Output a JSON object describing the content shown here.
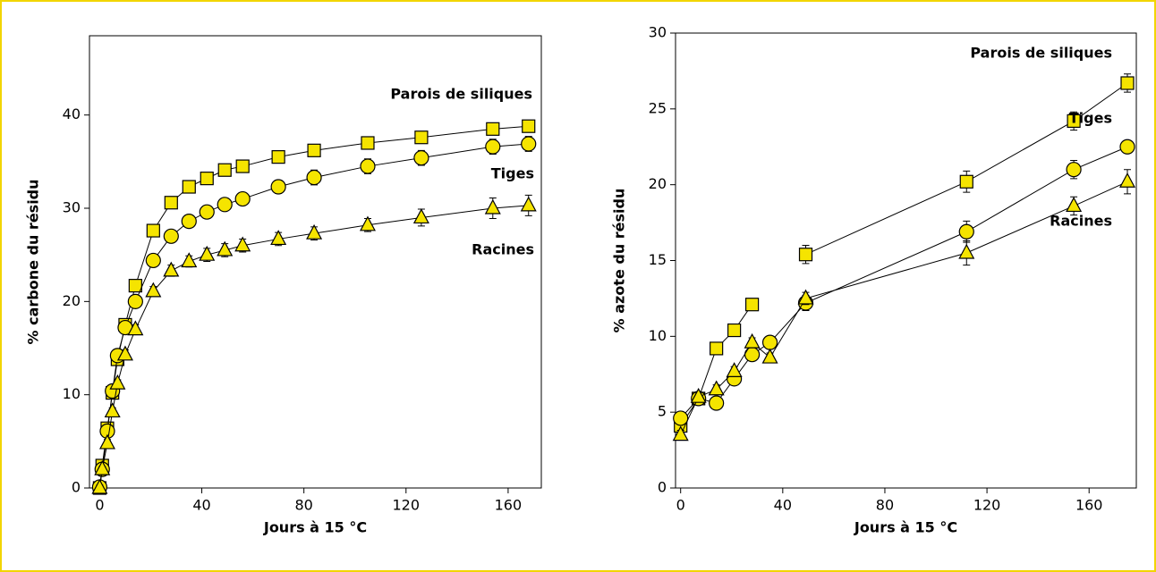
{
  "chart_data": [
    {
      "type": "line",
      "y_label": "% carbone du résidu",
      "x_label": "Jours à 15 °C",
      "x": [
        0,
        1,
        3,
        5,
        7,
        10,
        14,
        21,
        28,
        35,
        42,
        49,
        56,
        70,
        84,
        105,
        126,
        154,
        168
      ],
      "xlim": [
        -4,
        173
      ],
      "ylim": [
        0,
        48.5
      ],
      "xticks": [
        0,
        40,
        80,
        120,
        160
      ],
      "yticks": [
        0,
        10,
        20,
        30,
        40
      ],
      "series": [
        {
          "name": "Parois de siliques",
          "marker": "square",
          "color": "#f5e400",
          "values": [
            0,
            2.4,
            6.4,
            10.2,
            13.8,
            17.5,
            21.7,
            27.6,
            30.6,
            32.3,
            33.2,
            34.1,
            34.5,
            35.5,
            36.2,
            37.0,
            37.6,
            38.5,
            38.8
          ],
          "errors": [
            0.3,
            0.3,
            0.4,
            0.4,
            0.4,
            0.4,
            0.4,
            0.4,
            0.4,
            0.4,
            0.4,
            0.4,
            0.4,
            0.4,
            0.4,
            0.4,
            0.4,
            0.4,
            0.4
          ]
        },
        {
          "name": "Tiges",
          "marker": "circle",
          "color": "#f5e400",
          "values": [
            0.1,
            2.0,
            6.1,
            10.4,
            14.2,
            17.2,
            20.0,
            24.4,
            27.0,
            28.6,
            29.6,
            30.4,
            31.0,
            32.3,
            33.3,
            34.5,
            35.4,
            36.6,
            36.9
          ],
          "errors": [
            0.3,
            0.3,
            0.4,
            0.4,
            0.5,
            0.5,
            0.5,
            0.5,
            0.5,
            0.5,
            0.6,
            0.6,
            0.6,
            0.7,
            0.8,
            0.8,
            0.8,
            0.8,
            0.8
          ]
        },
        {
          "name": "Racines",
          "marker": "triangle",
          "color": "#f5e400",
          "values": [
            0,
            2.0,
            4.8,
            8.2,
            11.2,
            14.3,
            17.0,
            21.1,
            23.3,
            24.3,
            25.0,
            25.5,
            26.0,
            26.7,
            27.3,
            28.2,
            29.0,
            30.0,
            30.3
          ],
          "errors": [
            0.3,
            0.3,
            0.4,
            0.4,
            0.4,
            0.5,
            0.5,
            0.5,
            0.6,
            0.6,
            0.7,
            0.7,
            0.7,
            0.7,
            0.7,
            0.7,
            0.9,
            1.1,
            1.1
          ]
        }
      ]
    },
    {
      "type": "line",
      "y_label": "% azote du résidu",
      "x_label": "Jours à 15 °C",
      "x": [
        0,
        7,
        14,
        21,
        28,
        35,
        49,
        112,
        154,
        175
      ],
      "xlim": [
        -2,
        178.5
      ],
      "ylim": [
        0,
        30
      ],
      "xticks": [
        0,
        40,
        80,
        120,
        160
      ],
      "yticks": [
        0,
        5,
        10,
        15,
        20,
        25,
        30
      ],
      "series": [
        {
          "name": "Parois de siliques",
          "marker": "square",
          "color": "#f5e400",
          "values": [
            4.1,
            5.9,
            9.2,
            10.4,
            12.1,
            null,
            15.4,
            20.2,
            24.2,
            26.7
          ],
          "errors": [
            0.3,
            0.3,
            0.3,
            0.3,
            0.3,
            null,
            0.6,
            0.7,
            0.6,
            0.6
          ]
        },
        {
          "name": "Tiges",
          "marker": "circle",
          "color": "#f5e400",
          "values": [
            4.6,
            5.9,
            5.6,
            7.2,
            8.8,
            9.6,
            12.2,
            16.9,
            21.0,
            22.5
          ],
          "errors": [
            0.3,
            0.3,
            0.3,
            0.3,
            0.3,
            0.3,
            0.5,
            0.7,
            0.6,
            0.3
          ]
        },
        {
          "name": "Racines",
          "marker": "triangle",
          "color": "#f5e400",
          "values": [
            3.5,
            6.0,
            6.5,
            7.7,
            9.6,
            8.6,
            12.5,
            15.5,
            18.6,
            20.2
          ],
          "errors": [
            0.3,
            0.3,
            0.3,
            0.3,
            0.3,
            0.3,
            0.4,
            0.8,
            0.6,
            0.8
          ]
        }
      ]
    }
  ]
}
